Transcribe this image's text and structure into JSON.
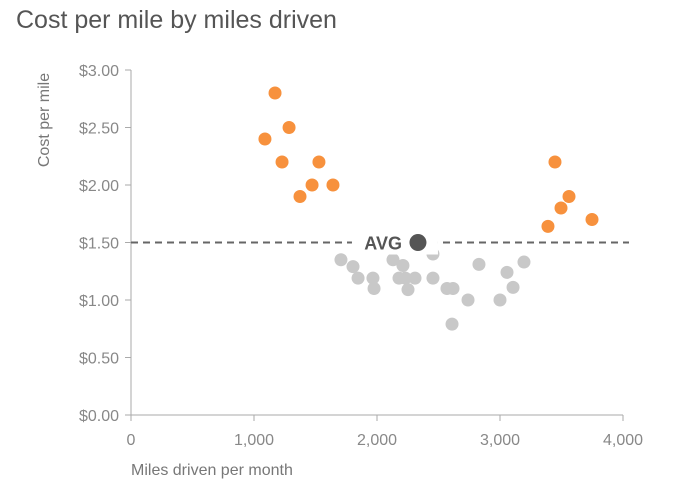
{
  "chart_data": {
    "type": "scatter",
    "title": "Cost per mile by miles driven",
    "xlabel": "Miles driven per month",
    "ylabel": "Cost per mile",
    "xlim": [
      0,
      4000
    ],
    "ylim": [
      0,
      3
    ],
    "x_ticks": [
      "0",
      "1,000",
      "2,000",
      "3,000",
      "4,000"
    ],
    "y_ticks": [
      "$0.00",
      "$0.50",
      "$1.00",
      "$1.50",
      "$2.00",
      "$2.50",
      "$3.00"
    ],
    "grid": false,
    "colors": {
      "high": "#f7913d",
      "normal": "#c8c8c8",
      "average": "#555555",
      "reference_line": "#666666"
    },
    "average": {
      "label": "AVG",
      "x": 2333,
      "y": 1.5
    },
    "reference_line_y": 1.5,
    "series": [
      {
        "group": "high",
        "points": [
          [
            1089,
            2.4
          ],
          [
            1171,
            2.8
          ],
          [
            1285,
            2.5
          ],
          [
            1228,
            2.2
          ],
          [
            1374,
            1.9
          ],
          [
            1472,
            2.0
          ],
          [
            1528,
            2.2
          ],
          [
            1642,
            2.0
          ],
          [
            3447,
            2.2
          ],
          [
            3390,
            1.64
          ],
          [
            3496,
            1.8
          ],
          [
            3561,
            1.9
          ],
          [
            3748,
            1.7
          ]
        ]
      },
      {
        "group": "normal",
        "points": [
          [
            1707,
            1.35
          ],
          [
            1805,
            1.29
          ],
          [
            1846,
            1.19
          ],
          [
            1967,
            1.19
          ],
          [
            1976,
            1.1
          ],
          [
            2130,
            1.35
          ],
          [
            2211,
            1.3
          ],
          [
            2179,
            1.19
          ],
          [
            2230,
            1.19
          ],
          [
            2252,
            1.09
          ],
          [
            2309,
            1.19
          ],
          [
            2455,
            1.4
          ],
          [
            2455,
            1.19
          ],
          [
            2569,
            1.1
          ],
          [
            2618,
            1.1
          ],
          [
            2740,
            1.0
          ],
          [
            2610,
            0.79
          ],
          [
            2829,
            1.31
          ],
          [
            3000,
            1.0
          ],
          [
            3057,
            1.24
          ],
          [
            3106,
            1.11
          ],
          [
            3195,
            1.33
          ]
        ]
      }
    ]
  }
}
